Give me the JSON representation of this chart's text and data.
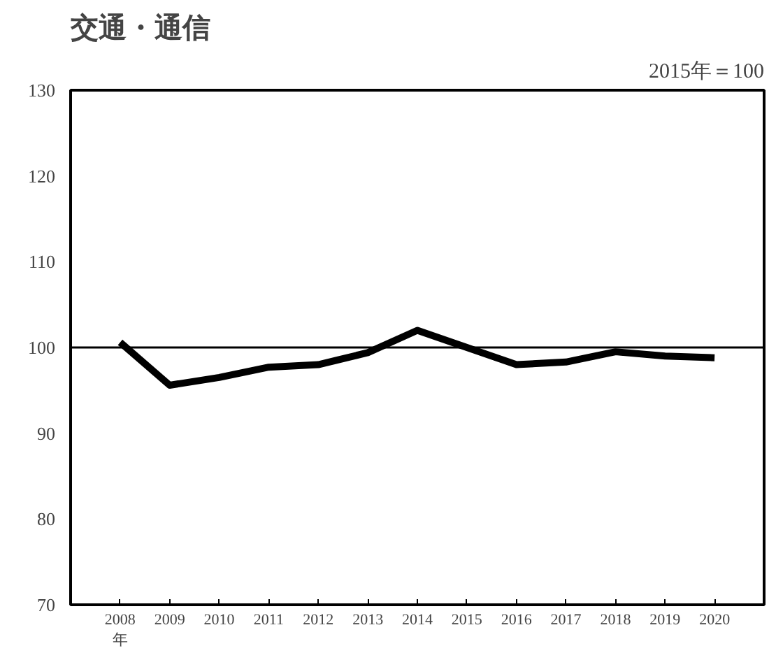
{
  "chart_data": {
    "type": "line",
    "title": "交通・通信",
    "annotations": [
      "2015年＝100"
    ],
    "categories": [
      "2008\n年",
      "2009",
      "2010",
      "2011",
      "2012",
      "2013",
      "2014",
      "2015",
      "2016",
      "2017",
      "2018",
      "2019",
      "2020"
    ],
    "series": [
      {
        "color": "#000000",
        "values": [
          100.6,
          95.6,
          96.5,
          97.7,
          98.0,
          99.4,
          102.0,
          100.0,
          98.0,
          98.3,
          99.5,
          99.0,
          98.8
        ]
      }
    ],
    "ylim": [
      70,
      130
    ],
    "yticks": [
      70,
      80,
      90,
      100,
      110,
      120,
      130
    ],
    "ref_lines": [
      {
        "axis": "y",
        "value": 100,
        "color": "#000000"
      }
    ],
    "grid": false,
    "marker": "none",
    "line_style": "solid"
  }
}
